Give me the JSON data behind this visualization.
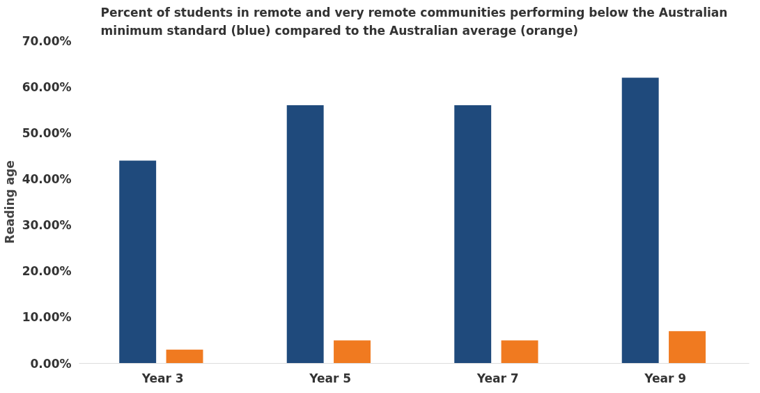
{
  "chart_data": {
    "type": "bar",
    "title": "Percent of students in remote and very remote communities performing below the Australian minimum standard (blue) compared to the Australian average (orange)",
    "ylabel": "Reading age",
    "categories": [
      "Year 3",
      "Year 5",
      "Year 7",
      "Year 9"
    ],
    "series": [
      {
        "color": "#1f4a7c",
        "values": [
          44,
          56,
          56,
          62
        ]
      },
      {
        "color": "#f07a20",
        "values": [
          3,
          5,
          5,
          7
        ]
      }
    ],
    "ylim": [
      0,
      70
    ],
    "yticks": [
      {
        "value": 0,
        "label": "0.00%"
      },
      {
        "value": 10,
        "label": "10.00%"
      },
      {
        "value": 20,
        "label": "20.00%"
      },
      {
        "value": 30,
        "label": "30.00%"
      },
      {
        "value": 40,
        "label": "40.00%"
      },
      {
        "value": 50,
        "label": "50.00%"
      },
      {
        "value": 60,
        "label": "60.00%"
      },
      {
        "value": 70,
        "label": "70.00%"
      }
    ],
    "grid": false
  }
}
